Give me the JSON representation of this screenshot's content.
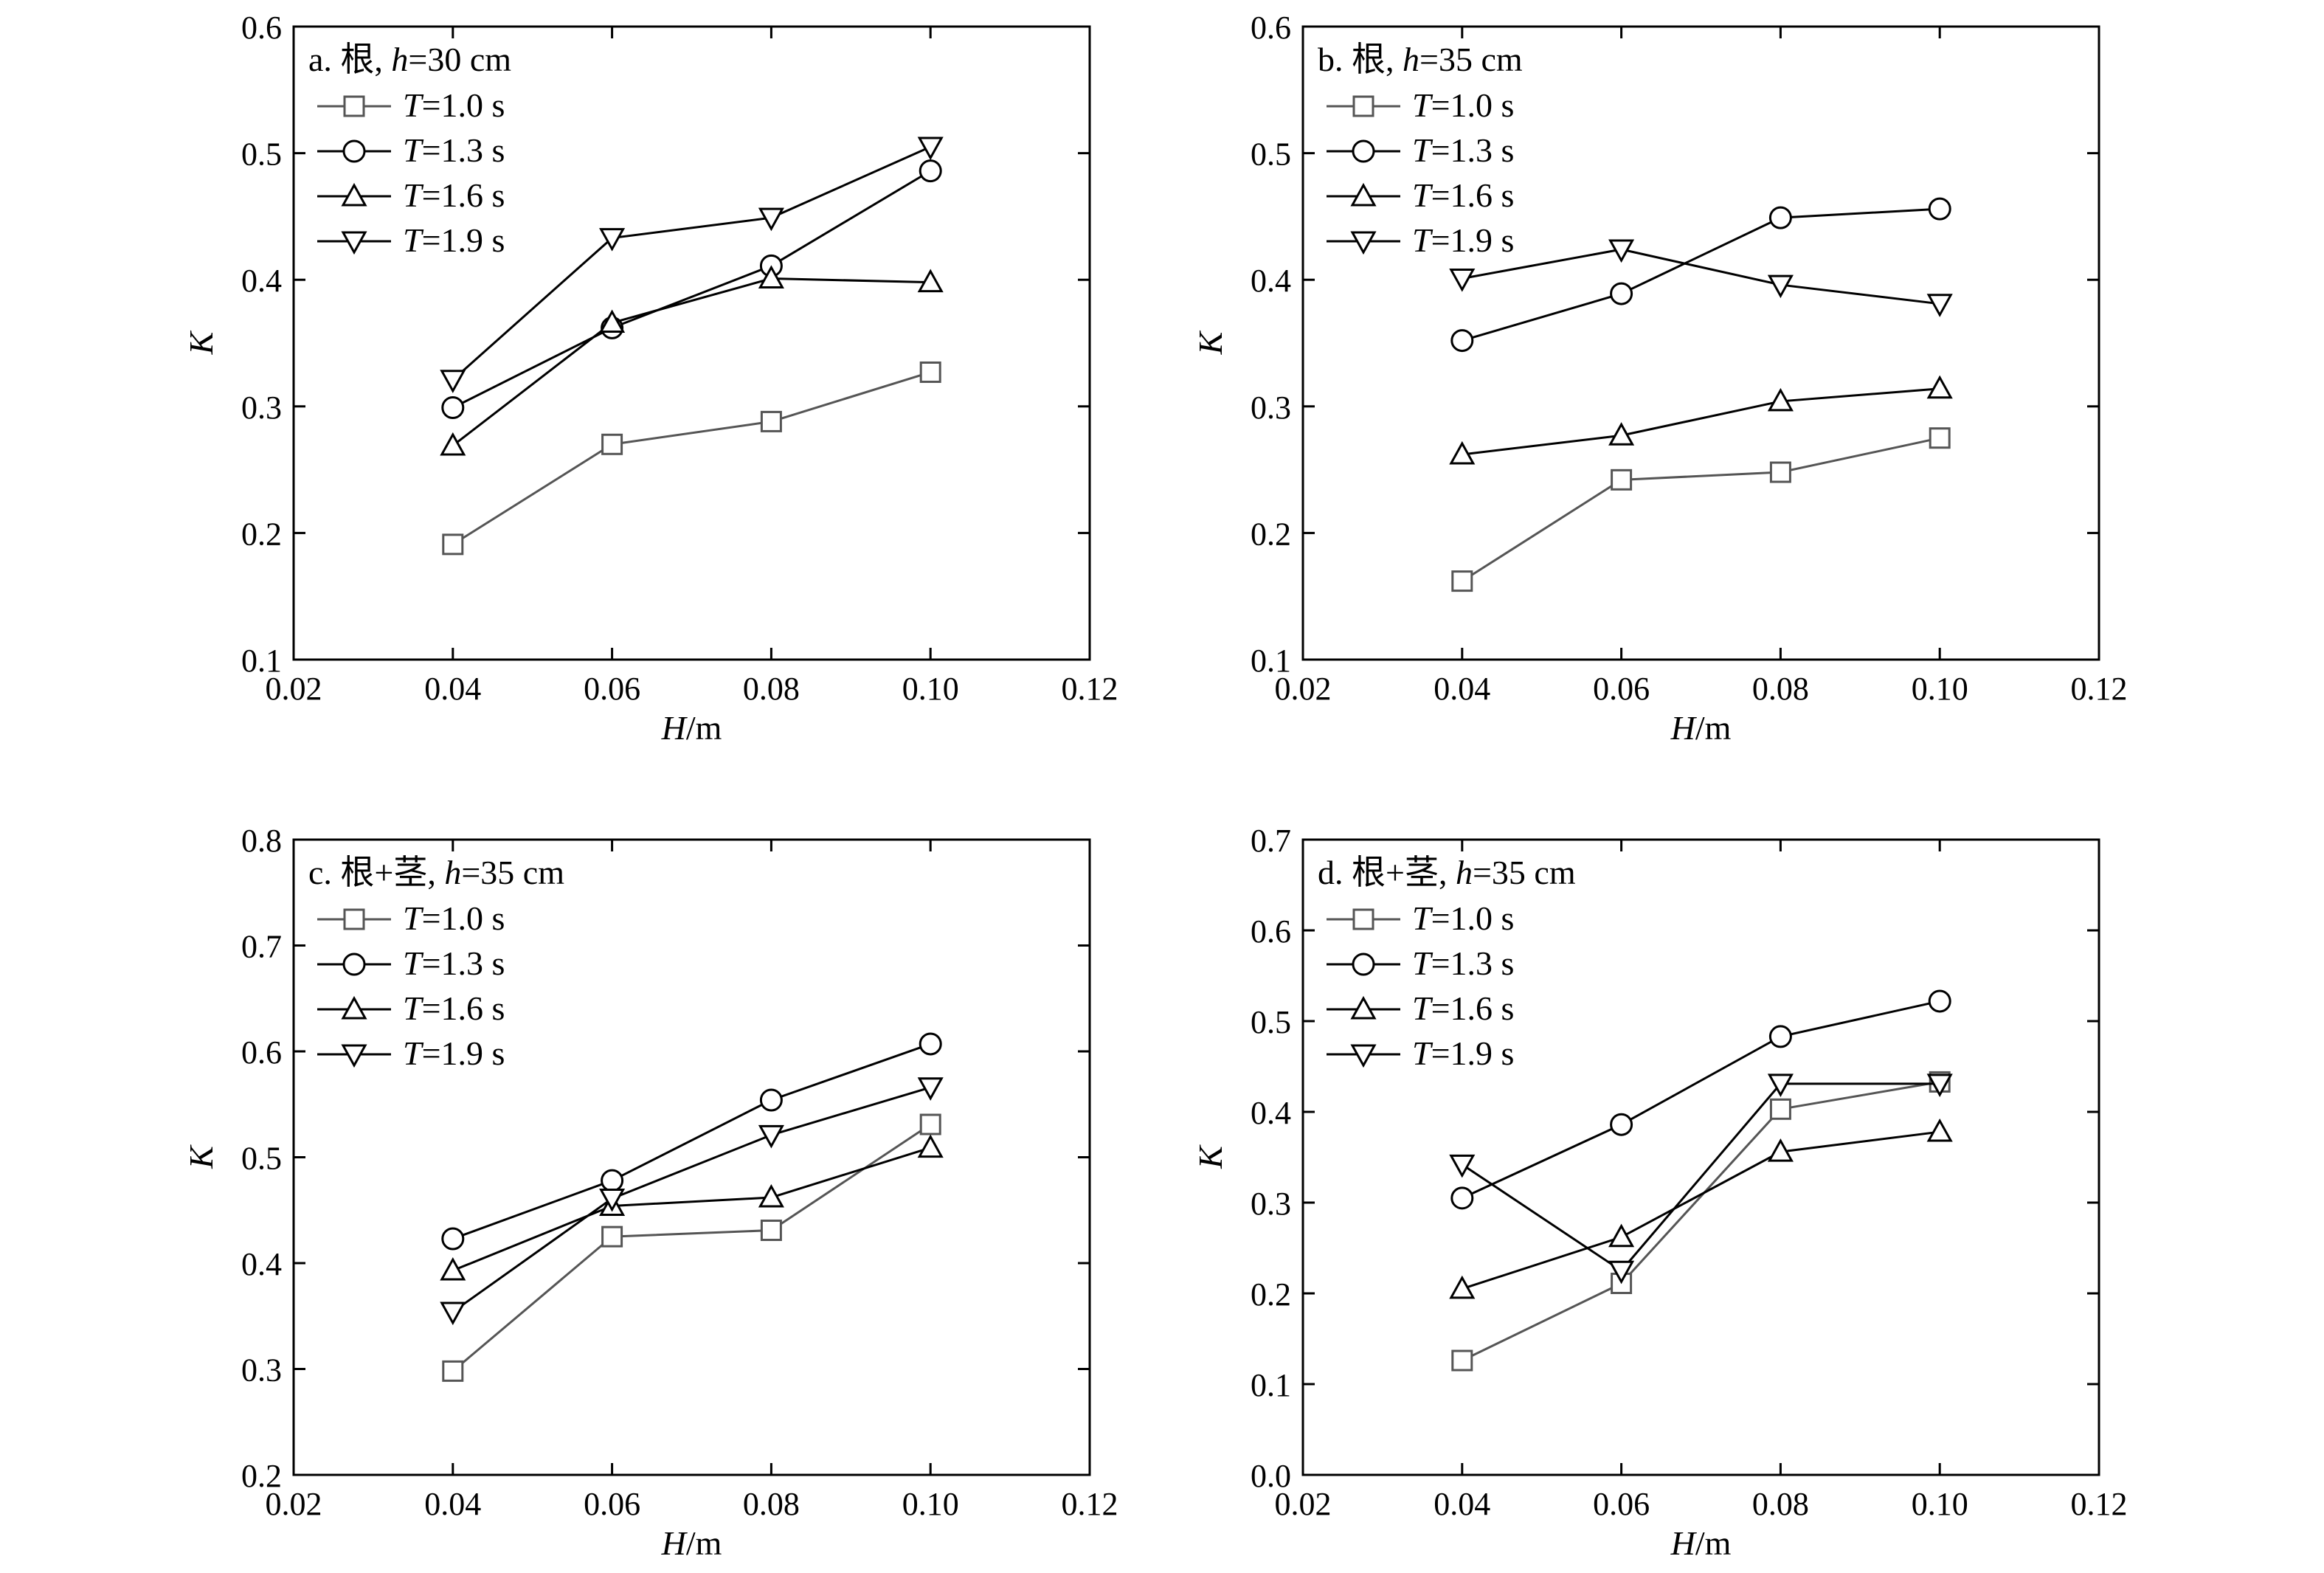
{
  "chart_data": [
    {
      "type": "line",
      "panel_label": "a.",
      "title_prefix": "根, ",
      "title_var": "h",
      "title_value": "=30 cm",
      "xlabel_var": "H",
      "xlabel_unit": "/m",
      "ylabel": "K",
      "xlim": [
        0.02,
        0.12
      ],
      "ylim": [
        0.1,
        0.6
      ],
      "x_ticks": [
        0.02,
        0.04,
        0.06,
        0.08,
        0.1,
        0.12
      ],
      "x_tick_labels": [
        "0.02",
        "0.04",
        "0.06",
        "0.08",
        "0.10",
        "0.12"
      ],
      "y_ticks": [
        0.1,
        0.2,
        0.3,
        0.4,
        0.5,
        0.6
      ],
      "y_tick_labels": [
        "0.1",
        "0.2",
        "0.3",
        "0.4",
        "0.5",
        "0.6"
      ],
      "x": [
        0.04,
        0.06,
        0.08,
        0.1
      ],
      "legend_position": "top-left",
      "grid": false,
      "series": [
        {
          "var": "T",
          "label": "=1.0 s",
          "marker": "square",
          "color": "#555555",
          "values": [
            0.191,
            0.27,
            0.288,
            0.327
          ]
        },
        {
          "var": "T",
          "label": "=1.3 s",
          "marker": "circle",
          "color": "#000000",
          "values": [
            0.299,
            0.362,
            0.411,
            0.486
          ]
        },
        {
          "var": "T",
          "label": "=1.6 s",
          "marker": "triangle-up",
          "color": "#000000",
          "values": [
            0.269,
            0.366,
            0.401,
            0.398
          ]
        },
        {
          "var": "T",
          "label": "=1.9 s",
          "marker": "triangle-down",
          "color": "#000000",
          "values": [
            0.321,
            0.433,
            0.449,
            0.505
          ]
        }
      ]
    },
    {
      "type": "line",
      "panel_label": "b.",
      "title_prefix": "根, ",
      "title_var": "h",
      "title_value": "=35 cm",
      "xlabel_var": "H",
      "xlabel_unit": "/m",
      "ylabel": "K",
      "xlim": [
        0.02,
        0.12
      ],
      "ylim": [
        0.1,
        0.6
      ],
      "x_ticks": [
        0.02,
        0.04,
        0.06,
        0.08,
        0.1,
        0.12
      ],
      "x_tick_labels": [
        "0.02",
        "0.04",
        "0.06",
        "0.08",
        "0.10",
        "0.12"
      ],
      "y_ticks": [
        0.1,
        0.2,
        0.3,
        0.4,
        0.5,
        0.6
      ],
      "y_tick_labels": [
        "0.1",
        "0.2",
        "0.3",
        "0.4",
        "0.5",
        "0.6"
      ],
      "x": [
        0.04,
        0.06,
        0.08,
        0.1
      ],
      "legend_position": "top-left",
      "grid": false,
      "series": [
        {
          "var": "T",
          "label": "=1.0 s",
          "marker": "square",
          "color": "#555555",
          "values": [
            0.162,
            0.242,
            0.248,
            0.275
          ]
        },
        {
          "var": "T",
          "label": "=1.3 s",
          "marker": "circle",
          "color": "#000000",
          "values": [
            0.352,
            0.389,
            0.449,
            0.456
          ]
        },
        {
          "var": "T",
          "label": "=1.6 s",
          "marker": "triangle-up",
          "color": "#000000",
          "values": [
            0.262,
            0.277,
            0.304,
            0.314
          ]
        },
        {
          "var": "T",
          "label": "=1.9 s",
          "marker": "triangle-down",
          "color": "#000000",
          "values": [
            0.401,
            0.424,
            0.396,
            0.381
          ]
        }
      ]
    },
    {
      "type": "line",
      "panel_label": "c.",
      "title_prefix": "根+茎, ",
      "title_var": "h",
      "title_value": "=35 cm",
      "xlabel_var": "H",
      "xlabel_unit": "/m",
      "ylabel": "K",
      "xlim": [
        0.02,
        0.12
      ],
      "ylim": [
        0.2,
        0.8
      ],
      "x_ticks": [
        0.02,
        0.04,
        0.06,
        0.08,
        0.1,
        0.12
      ],
      "x_tick_labels": [
        "0.02",
        "0.04",
        "0.06",
        "0.08",
        "0.10",
        "0.12"
      ],
      "y_ticks": [
        0.2,
        0.3,
        0.4,
        0.5,
        0.6,
        0.7,
        0.8
      ],
      "y_tick_labels": [
        "0.2",
        "0.3",
        "0.4",
        "0.5",
        "0.6",
        "0.7",
        "0.8"
      ],
      "x": [
        0.04,
        0.06,
        0.08,
        0.1
      ],
      "legend_position": "top-left",
      "grid": false,
      "series": [
        {
          "var": "T",
          "label": "=1.0 s",
          "marker": "square",
          "color": "#555555",
          "values": [
            0.298,
            0.425,
            0.431,
            0.531
          ]
        },
        {
          "var": "T",
          "label": "=1.3 s",
          "marker": "circle",
          "color": "#000000",
          "values": [
            0.423,
            0.478,
            0.554,
            0.607
          ]
        },
        {
          "var": "T",
          "label": "=1.6 s",
          "marker": "triangle-up",
          "color": "#000000",
          "values": [
            0.393,
            0.454,
            0.462,
            0.509
          ]
        },
        {
          "var": "T",
          "label": "=1.9 s",
          "marker": "triangle-down",
          "color": "#000000",
          "values": [
            0.354,
            0.461,
            0.521,
            0.566
          ]
        }
      ]
    },
    {
      "type": "line",
      "panel_label": "d.",
      "title_prefix": "根+茎, ",
      "title_var": "h",
      "title_value": "=35 cm",
      "xlabel_var": "H",
      "xlabel_unit": "/m",
      "ylabel": "K",
      "xlim": [
        0.02,
        0.12
      ],
      "ylim": [
        0.0,
        0.7
      ],
      "x_ticks": [
        0.02,
        0.04,
        0.06,
        0.08,
        0.1,
        0.12
      ],
      "x_tick_labels": [
        "0.02",
        "0.04",
        "0.06",
        "0.08",
        "0.10",
        "0.12"
      ],
      "y_ticks": [
        0.0,
        0.1,
        0.2,
        0.3,
        0.4,
        0.5,
        0.6,
        0.7
      ],
      "y_tick_labels": [
        "0.0",
        "0.1",
        "0.2",
        "0.3",
        "0.4",
        "0.5",
        "0.6",
        "0.7"
      ],
      "x": [
        0.04,
        0.06,
        0.08,
        0.1
      ],
      "legend_position": "top-left",
      "grid": false,
      "series": [
        {
          "var": "T",
          "label": "=1.0 s",
          "marker": "square",
          "color": "#555555",
          "values": [
            0.126,
            0.211,
            0.403,
            0.433
          ]
        },
        {
          "var": "T",
          "label": "=1.3 s",
          "marker": "circle",
          "color": "#000000",
          "values": [
            0.305,
            0.386,
            0.483,
            0.522
          ]
        },
        {
          "var": "T",
          "label": "=1.6 s",
          "marker": "triangle-up",
          "color": "#000000",
          "values": [
            0.205,
            0.262,
            0.356,
            0.378
          ]
        },
        {
          "var": "T",
          "label": "=1.9 s",
          "marker": "triangle-down",
          "color": "#000000",
          "values": [
            0.342,
            0.225,
            0.431,
            0.431
          ]
        }
      ]
    }
  ]
}
